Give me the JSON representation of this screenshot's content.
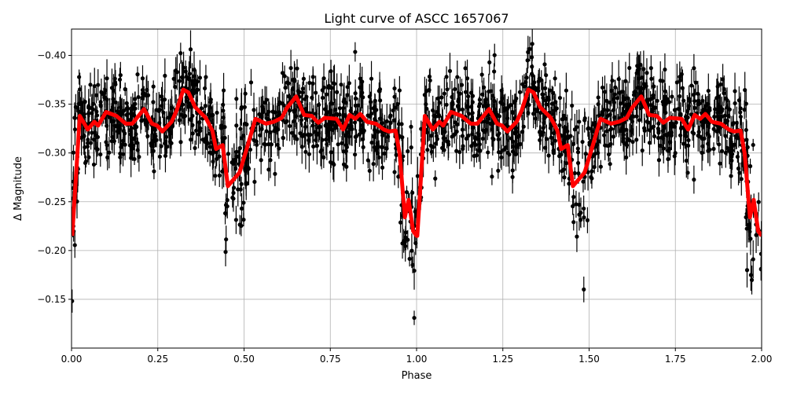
{
  "chart_data": {
    "type": "scatter",
    "title": "Light curve of ASCC 1657067",
    "xlabel": "Phase",
    "ylabel": "Δ Magnitude",
    "xlim": [
      0.0,
      2.0
    ],
    "ylim": [
      -0.1,
      -0.427
    ],
    "y_inverted": true,
    "grid": true,
    "xticks": [
      "0.00",
      "0.25",
      "0.50",
      "0.75",
      "1.00",
      "1.25",
      "1.50",
      "1.75",
      "2.00"
    ],
    "xtick_values": [
      0,
      0.25,
      0.5,
      0.75,
      1.0,
      1.25,
      1.5,
      1.75,
      2.0
    ],
    "yticks": [
      "−0.40",
      "−0.35",
      "−0.30",
      "−0.25",
      "−0.20",
      "−0.15"
    ],
    "ytick_values": [
      -0.4,
      -0.35,
      -0.3,
      -0.25,
      -0.2,
      -0.15
    ],
    "colors": {
      "points": "#000000",
      "model": "#ff0000",
      "grid": "#b0b0b0"
    },
    "model_curve": {
      "x": [
        0.002,
        0.024,
        0.047,
        0.066,
        0.077,
        0.1,
        0.13,
        0.157,
        0.176,
        0.21,
        0.233,
        0.248,
        0.263,
        0.29,
        0.305,
        0.324,
        0.339,
        0.358,
        0.389,
        0.408,
        0.419,
        0.438,
        0.453,
        0.487,
        0.51,
        0.533,
        0.563,
        0.586,
        0.609,
        0.624,
        0.651,
        0.674,
        0.696,
        0.715,
        0.734,
        0.768,
        0.787,
        0.806,
        0.822,
        0.837,
        0.856,
        0.882,
        0.905,
        0.92,
        0.939,
        0.951,
        0.966,
        0.977,
        0.99,
        1.0,
        1.002,
        1.024,
        1.047,
        1.066,
        1.077,
        1.1,
        1.13,
        1.157,
        1.176,
        1.21,
        1.233,
        1.248,
        1.263,
        1.29,
        1.305,
        1.324,
        1.339,
        1.358,
        1.389,
        1.408,
        1.419,
        1.438,
        1.453,
        1.487,
        1.51,
        1.533,
        1.563,
        1.586,
        1.609,
        1.624,
        1.651,
        1.674,
        1.696,
        1.715,
        1.734,
        1.768,
        1.787,
        1.806,
        1.822,
        1.837,
        1.856,
        1.882,
        1.905,
        1.92,
        1.939,
        1.951,
        1.966,
        1.977,
        1.99,
        2.0
      ],
      "y": [
        -0.215,
        -0.338,
        -0.324,
        -0.332,
        -0.328,
        -0.342,
        -0.338,
        -0.33,
        -0.33,
        -0.345,
        -0.33,
        -0.328,
        -0.322,
        -0.332,
        -0.344,
        -0.365,
        -0.362,
        -0.347,
        -0.336,
        -0.323,
        -0.304,
        -0.308,
        -0.266,
        -0.28,
        -0.307,
        -0.335,
        -0.33,
        -0.332,
        -0.336,
        -0.346,
        -0.358,
        -0.339,
        -0.338,
        -0.331,
        -0.336,
        -0.335,
        -0.324,
        -0.339,
        -0.335,
        -0.34,
        -0.332,
        -0.33,
        -0.324,
        -0.322,
        -0.323,
        -0.299,
        -0.234,
        -0.252,
        -0.22,
        -0.215,
        -0.215,
        -0.338,
        -0.324,
        -0.332,
        -0.328,
        -0.342,
        -0.338,
        -0.33,
        -0.33,
        -0.345,
        -0.33,
        -0.328,
        -0.322,
        -0.332,
        -0.344,
        -0.365,
        -0.362,
        -0.347,
        -0.336,
        -0.323,
        -0.304,
        -0.308,
        -0.266,
        -0.28,
        -0.307,
        -0.335,
        -0.33,
        -0.332,
        -0.336,
        -0.346,
        -0.358,
        -0.339,
        -0.338,
        -0.331,
        -0.336,
        -0.335,
        -0.324,
        -0.339,
        -0.335,
        -0.34,
        -0.332,
        -0.33,
        -0.324,
        -0.322,
        -0.323,
        -0.299,
        -0.234,
        -0.252,
        -0.22,
        -0.215
      ]
    }
  }
}
